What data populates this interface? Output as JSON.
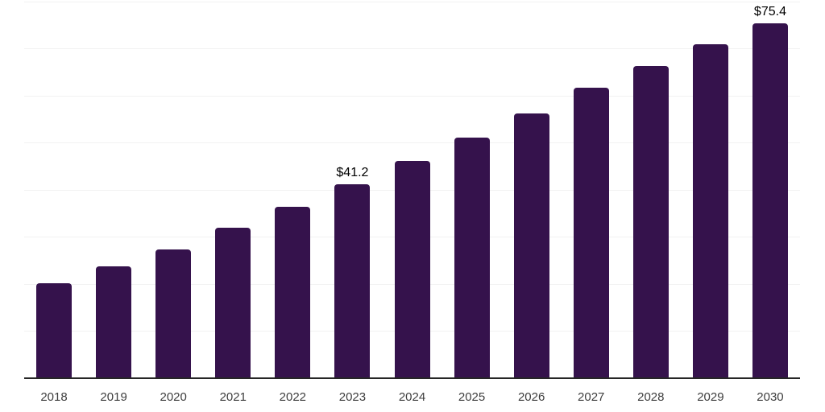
{
  "chart_data": {
    "type": "bar",
    "title": "",
    "xlabel": "",
    "ylabel": "",
    "categories": [
      "2018",
      "2019",
      "2020",
      "2021",
      "2022",
      "2023",
      "2024",
      "2025",
      "2026",
      "2027",
      "2028",
      "2029",
      "2030"
    ],
    "values": [
      20.2,
      23.8,
      27.4,
      31.9,
      36.4,
      41.2,
      46.2,
      51.1,
      56.2,
      61.7,
      66.3,
      70.9,
      75.4
    ],
    "bar_labels": {
      "2023": "$41.2",
      "2030": "$75.4"
    },
    "ylim": [
      0,
      80
    ],
    "gridline_step": 10,
    "grid": "horizontal-only",
    "legend_position": "none",
    "y_axis_ticks_visible": false,
    "colors": {
      "bar": "#35124c",
      "gridline": "#f2f2f2",
      "axis_line": "#262626",
      "tick_label": "#3d3d3d",
      "value_label": "#000000",
      "background": "#ffffff"
    }
  }
}
